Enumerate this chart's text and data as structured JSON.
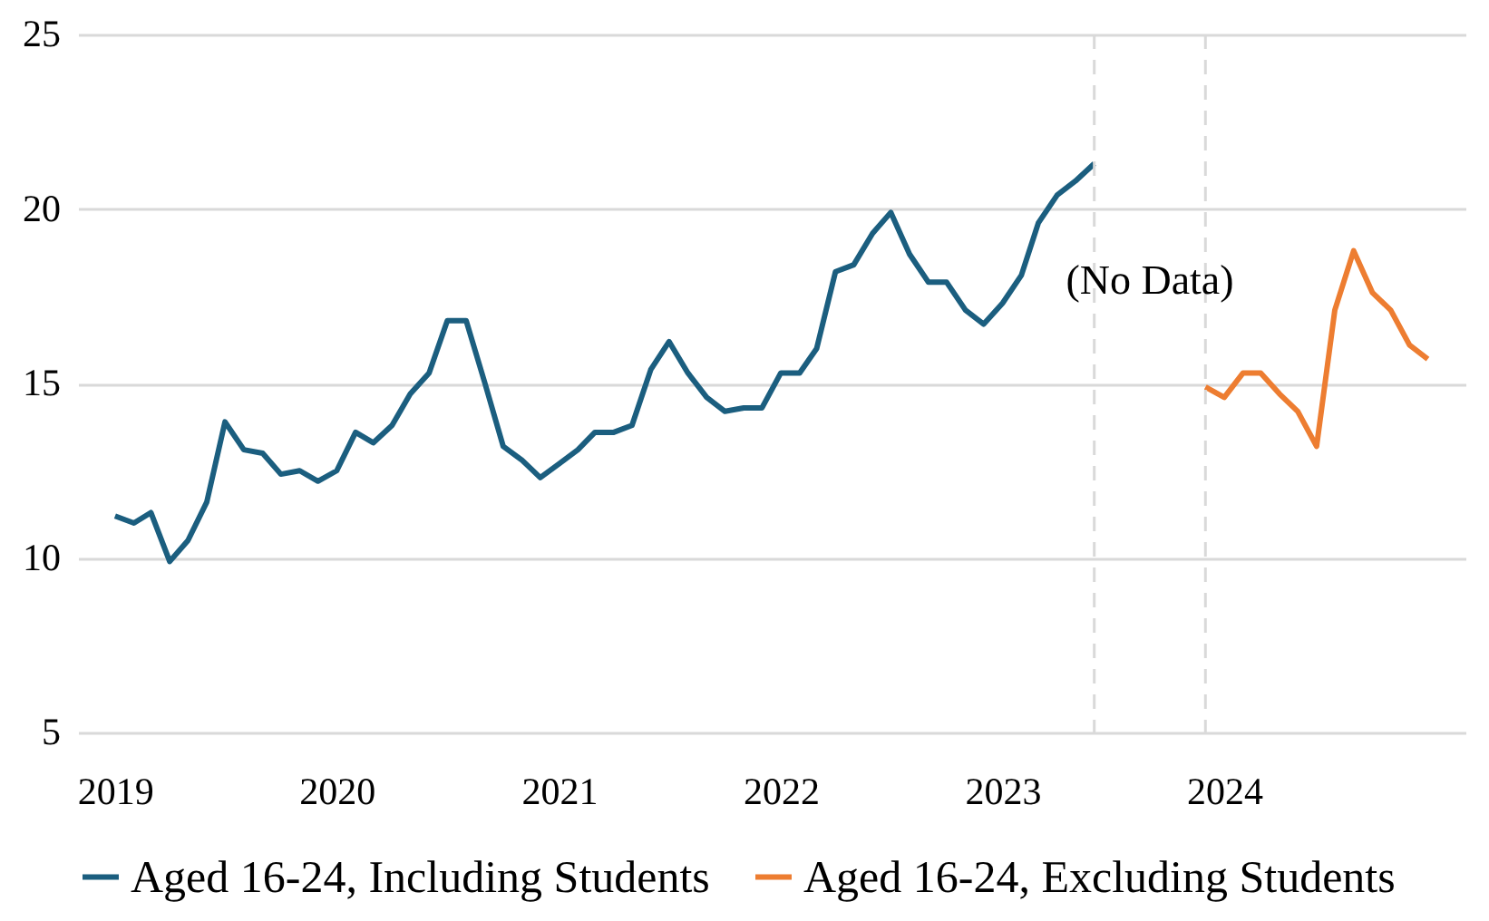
{
  "chart_data": {
    "type": "line",
    "x": [
      "2019-01",
      "2019-02",
      "2019-03",
      "2019-04",
      "2019-05",
      "2019-06",
      "2019-07",
      "2019-08",
      "2019-09",
      "2019-10",
      "2019-11",
      "2019-12",
      "2020-01",
      "2020-02",
      "2020-03",
      "2020-04",
      "2020-05",
      "2020-06",
      "2020-07",
      "2020-08",
      "2020-09",
      "2020-10",
      "2020-11",
      "2020-12",
      "2021-01",
      "2021-02",
      "2021-03",
      "2021-04",
      "2021-05",
      "2021-06",
      "2021-07",
      "2021-08",
      "2021-09",
      "2021-10",
      "2021-11",
      "2021-12",
      "2022-01",
      "2022-02",
      "2022-03",
      "2022-04",
      "2022-05",
      "2022-06",
      "2022-07",
      "2022-08",
      "2022-09",
      "2022-10",
      "2022-11",
      "2022-12",
      "2023-01",
      "2023-02",
      "2023-03",
      "2023-04",
      "2023-05",
      "2023-06"
    ],
    "series": [
      {
        "name": "Aged 16-24, Including Students",
        "color": "#1b5e7f",
        "values": [
          11.2,
          11.0,
          11.3,
          9.9,
          10.5,
          11.6,
          13.9,
          13.1,
          13.0,
          12.4,
          12.5,
          12.2,
          12.5,
          13.6,
          13.3,
          13.8,
          14.7,
          15.3,
          16.8,
          16.8,
          15.0,
          13.2,
          12.8,
          12.3,
          12.7,
          13.1,
          13.6,
          13.6,
          13.8,
          15.4,
          16.2,
          15.3,
          14.6,
          14.2,
          14.3,
          14.3,
          15.3,
          15.3,
          16.0,
          18.2,
          18.4,
          19.3,
          19.9,
          18.7,
          17.9,
          17.9,
          17.1,
          16.7,
          17.3,
          18.1,
          19.6,
          20.4,
          20.8,
          21.3
        ]
      },
      {
        "name": "Aged 16-24, Excluding Students",
        "color": "#ed7d31",
        "x": [
          "2023-12",
          "2024-01",
          "2024-02",
          "2024-03",
          "2024-04",
          "2024-05",
          "2024-06",
          "2024-07",
          "2024-08",
          "2024-09",
          "2024-10",
          "2024-11",
          "2024-12"
        ],
        "values": [
          14.9,
          14.6,
          15.3,
          15.3,
          14.7,
          14.2,
          13.2,
          17.1,
          18.8,
          17.6,
          17.1,
          16.1,
          15.7
        ]
      }
    ],
    "xlim": [
      "2018-11",
      "2025-02"
    ],
    "xticks": [
      {
        "value": "2019-01",
        "label": "2019"
      },
      {
        "value": "2020-01",
        "label": "2020"
      },
      {
        "value": "2021-01",
        "label": "2021"
      },
      {
        "value": "2022-01",
        "label": "2022"
      },
      {
        "value": "2023-01",
        "label": "2023"
      },
      {
        "value": "2024-01",
        "label": "2024"
      }
    ],
    "ylim": [
      5,
      25
    ],
    "yticks": [
      5,
      10,
      15,
      20,
      25
    ],
    "grid": "y",
    "legend": "bottom",
    "line_style": "solid",
    "marker": "none",
    "ref_lines": [
      {
        "axis": "x",
        "value": "2023-06",
        "color": "#d9d9d9",
        "line_style": "dashed"
      },
      {
        "axis": "x",
        "value": "2023-12",
        "color": "#d9d9d9",
        "line_style": "dashed"
      }
    ],
    "annotations": [
      "(No Data)"
    ]
  }
}
